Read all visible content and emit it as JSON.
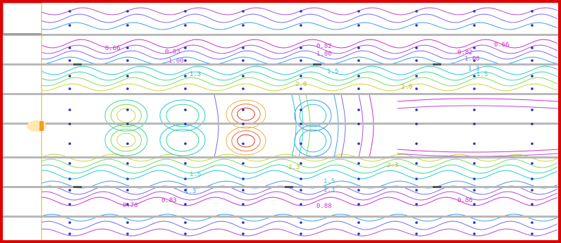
{
  "colors": {
    "frame": "#e00000",
    "grid_point": "#2b2bd0",
    "wall": "#b8b8b8",
    "wall_dark": "#555555",
    "inlet": "#f0a020",
    "contour_palette": [
      "#cc33cc",
      "#b04fd8",
      "#7a6cf0",
      "#3fa0f0",
      "#28c8d8",
      "#3cd8a0",
      "#7ae05a",
      "#c8d840",
      "#f0b040",
      "#f07030",
      "#e03020"
    ]
  },
  "contour_labels": [
    {
      "text": "0.66",
      "color": "#cc33cc"
    },
    {
      "text": "0.83",
      "color": "#cc33cc"
    },
    {
      "text": "1.00",
      "color": "#b04fd8"
    },
    {
      "text": "0.82",
      "color": "#cc33cc"
    },
    {
      "text": "1.00",
      "color": "#b04fd8"
    },
    {
      "text": "0.82",
      "color": "#cc33cc"
    },
    {
      "text": "1.00",
      "color": "#b04fd8"
    },
    {
      "text": "0.66",
      "color": "#cc33cc"
    },
    {
      "text": "1.3",
      "color": "#3fa0f0"
    },
    {
      "text": "1.5",
      "color": "#28c8d8"
    },
    {
      "text": "1.3",
      "color": "#3fa0f0"
    },
    {
      "text": "1.5",
      "color": "#28c8d8"
    },
    {
      "text": "2.0",
      "color": "#c8b020"
    },
    {
      "text": "2.0",
      "color": "#c8b020"
    },
    {
      "text": "2.3",
      "color": "#c8b020"
    },
    {
      "text": "2.3",
      "color": "#c8b020"
    },
    {
      "text": "1.5",
      "color": "#28c8d8"
    },
    {
      "text": "1.5",
      "color": "#28c8d8"
    },
    {
      "text": "1.3",
      "color": "#3fa0f0"
    },
    {
      "text": "1.3",
      "color": "#3fa0f0"
    },
    {
      "text": "0.70",
      "color": "#cc33cc"
    },
    {
      "text": "0.83",
      "color": "#cc33cc"
    },
    {
      "text": "0.88",
      "color": "#cc33cc"
    },
    {
      "text": "0.86",
      "color": "#cc33cc"
    }
  ]
}
